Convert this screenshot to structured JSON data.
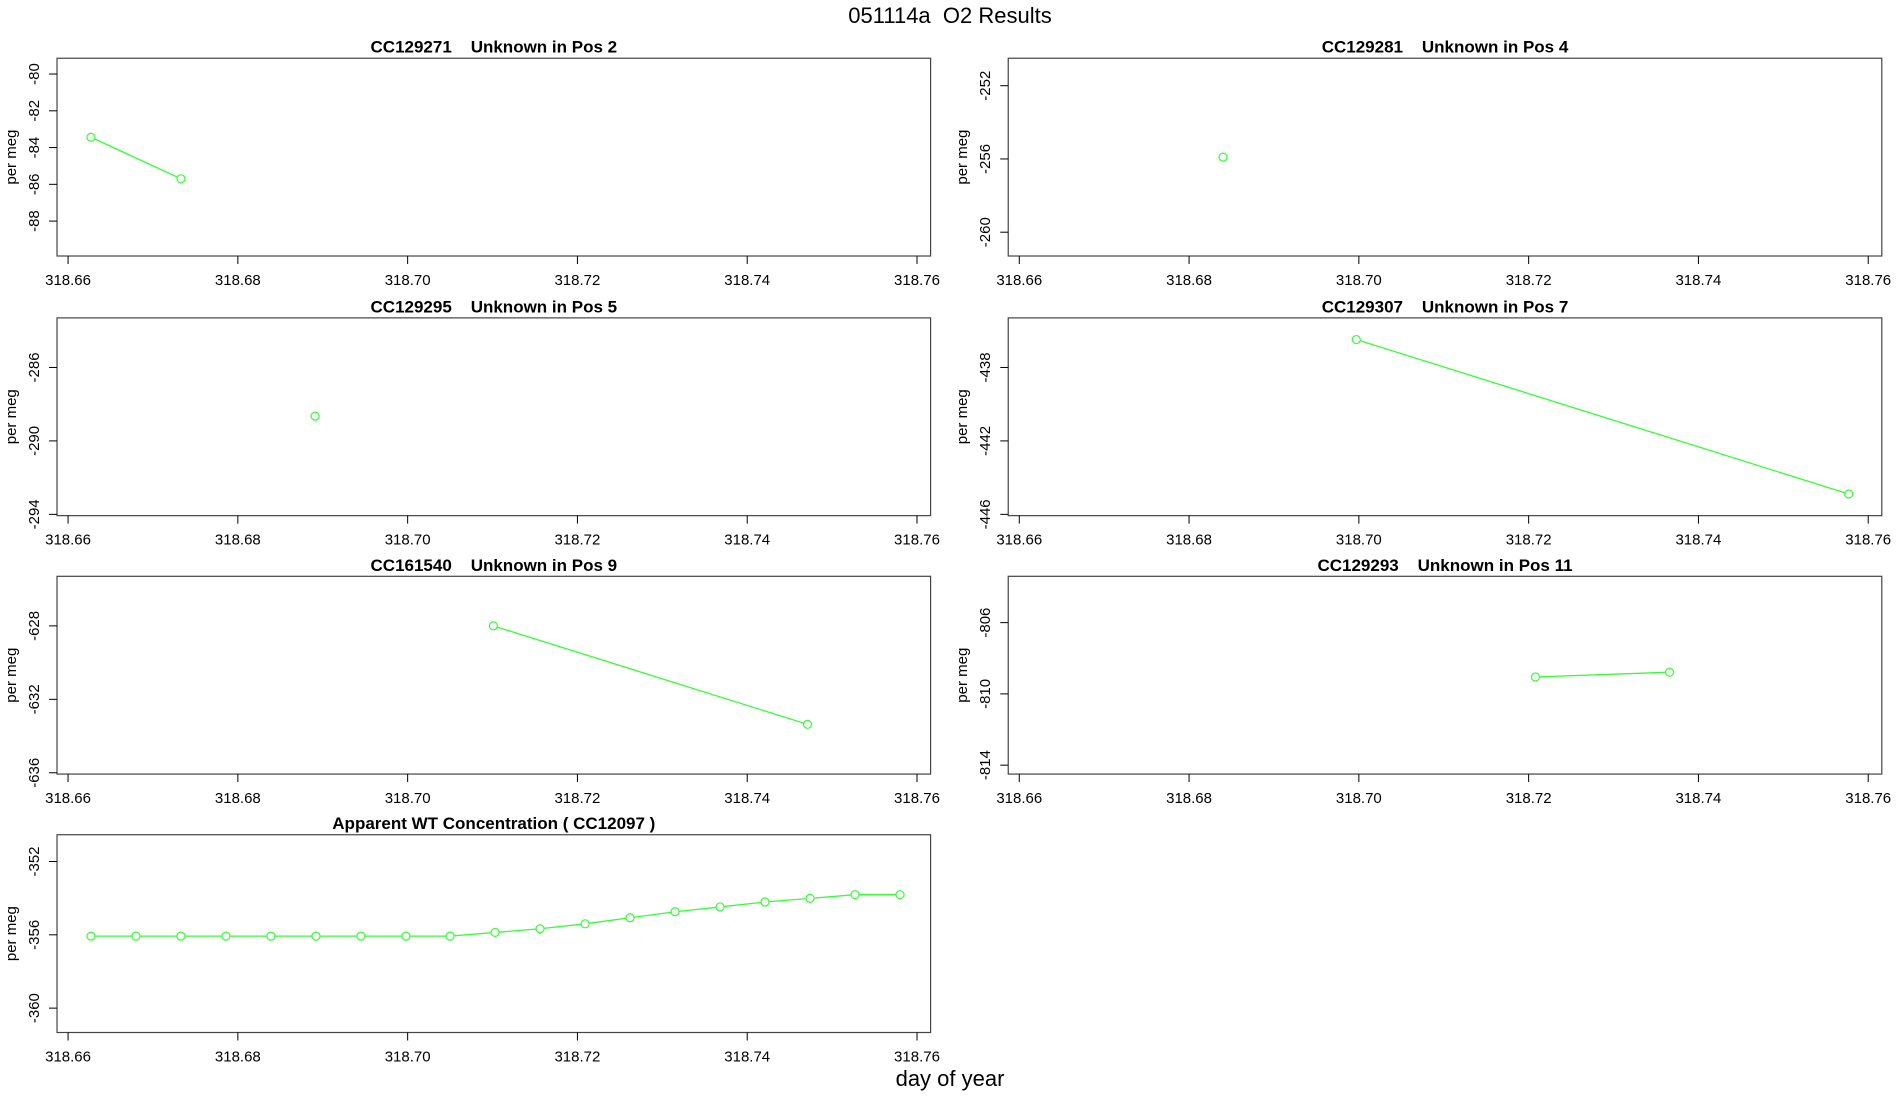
{
  "title": "051114a  O2 Results",
  "xlabel": "day of year",
  "chart_data": [
    {
      "type": "line",
      "title": "CC129271    Unknown in Pos 2",
      "ylabel": "per meg",
      "x": [
        318.6627,
        318.6733
      ],
      "series": [
        {
          "color": "#33ff33",
          "values": [
            -83.44,
            -85.7
          ]
        }
      ],
      "xlim": [
        318.6587,
        318.7616
      ],
      "ylim": [
        -89.9,
        -79.14
      ],
      "xticks": [
        318.66,
        318.68,
        {
          "value": 318.7,
          "label": "318.70"
        },
        318.72,
        318.74,
        318.76
      ],
      "yticks": [
        -80,
        -82,
        -84,
        -86,
        -88
      ]
    },
    {
      "type": "line",
      "title": "CC129281    Unknown in Pos 4",
      "ylabel": "per meg",
      "x": [
        318.684
      ],
      "series": [
        {
          "color": "#33ff33",
          "values": [
            -255.9
          ]
        }
      ],
      "xlim": [
        318.6587,
        318.7616
      ],
      "ylim": [
        -261.3,
        -250.5
      ],
      "xticks": [
        318.66,
        318.68,
        {
          "value": 318.7,
          "label": "318.70"
        },
        318.72,
        318.74,
        318.76
      ],
      "yticks": [
        -252,
        -256,
        -260
      ]
    },
    {
      "type": "line",
      "title": "CC129295    Unknown in Pos 5",
      "ylabel": "per meg",
      "x": [
        318.6891
      ],
      "series": [
        {
          "color": "#33ff33",
          "values": [
            -288.65
          ]
        }
      ],
      "xlim": [
        318.6587,
        318.7616
      ],
      "ylim": [
        -294.07,
        -283.3
      ],
      "xticks": [
        318.66,
        318.68,
        {
          "value": 318.7,
          "label": "318.70"
        },
        318.72,
        318.74,
        318.76
      ],
      "yticks": [
        -286,
        -290,
        -294
      ]
    },
    {
      "type": "line",
      "title": "CC129307    Unknown in Pos 7",
      "ylabel": "per meg",
      "x": [
        318.6997,
        318.7577
      ],
      "series": [
        {
          "color": "#33ff33",
          "values": [
            -436.48,
            -444.89
          ]
        }
      ],
      "xlim": [
        318.6587,
        318.7616
      ],
      "ylim": [
        -446.07,
        -435.3
      ],
      "xticks": [
        318.66,
        318.68,
        {
          "value": 318.7,
          "label": "318.70"
        },
        318.72,
        318.74,
        318.76
      ],
      "yticks": [
        -438,
        -442,
        -446
      ]
    },
    {
      "type": "line",
      "title": "CC161540    Unknown in Pos 9",
      "ylabel": "per meg",
      "x": [
        318.7101,
        318.7471
      ],
      "series": [
        {
          "color": "#33ff33",
          "values": [
            -628.0,
            -633.36
          ]
        }
      ],
      "xlim": [
        318.6587,
        318.7616
      ],
      "ylim": [
        -636.07,
        -625.3
      ],
      "xticks": [
        318.66,
        318.68,
        {
          "value": 318.7,
          "label": "318.70"
        },
        318.72,
        318.74,
        318.76
      ],
      "yticks": [
        -628,
        -632,
        -636
      ]
    },
    {
      "type": "line",
      "title": "CC129293    Unknown in Pos 11",
      "ylabel": "per meg",
      "x": [
        318.7208,
        318.7366
      ],
      "series": [
        {
          "color": "#33ff33",
          "values": [
            -809.05,
            -808.78
          ]
        }
      ],
      "xlim": [
        318.6587,
        318.7616
      ],
      "ylim": [
        -814.5,
        -803.4
      ],
      "xticks": [
        318.66,
        318.68,
        {
          "value": 318.7,
          "label": "318.70"
        },
        318.72,
        318.74,
        318.76
      ],
      "yticks": [
        -806,
        -810,
        -814
      ]
    },
    {
      "type": "line",
      "title": "Apparent WT Concentration ( CC12097 )",
      "ylabel": "per meg",
      "x": [
        318.6627,
        318.668,
        318.6733,
        318.6786,
        318.6839,
        318.6892,
        318.6945,
        318.6998,
        318.705,
        318.7103,
        318.7156,
        318.7209,
        318.7262,
        318.7315,
        318.7368,
        318.7421,
        318.7474,
        318.7527,
        318.758
      ],
      "series": [
        {
          "color": "#33ff33",
          "values": [
            -356.07,
            -356.07,
            -356.07,
            -356.07,
            -356.07,
            -356.07,
            -356.07,
            -356.07,
            -356.07,
            -355.87,
            -355.67,
            -355.4,
            -355.07,
            -354.74,
            -354.48,
            -354.21,
            -354.01,
            -353.81,
            -353.81
          ]
        }
      ],
      "xlim": [
        318.6587,
        318.7616
      ],
      "ylim": [
        -361.33,
        -350.54
      ],
      "xticks": [
        318.66,
        318.68,
        {
          "value": 318.7,
          "label": "318.70"
        },
        318.72,
        318.74,
        318.76
      ],
      "yticks": [
        -352,
        -356,
        -360
      ]
    }
  ]
}
